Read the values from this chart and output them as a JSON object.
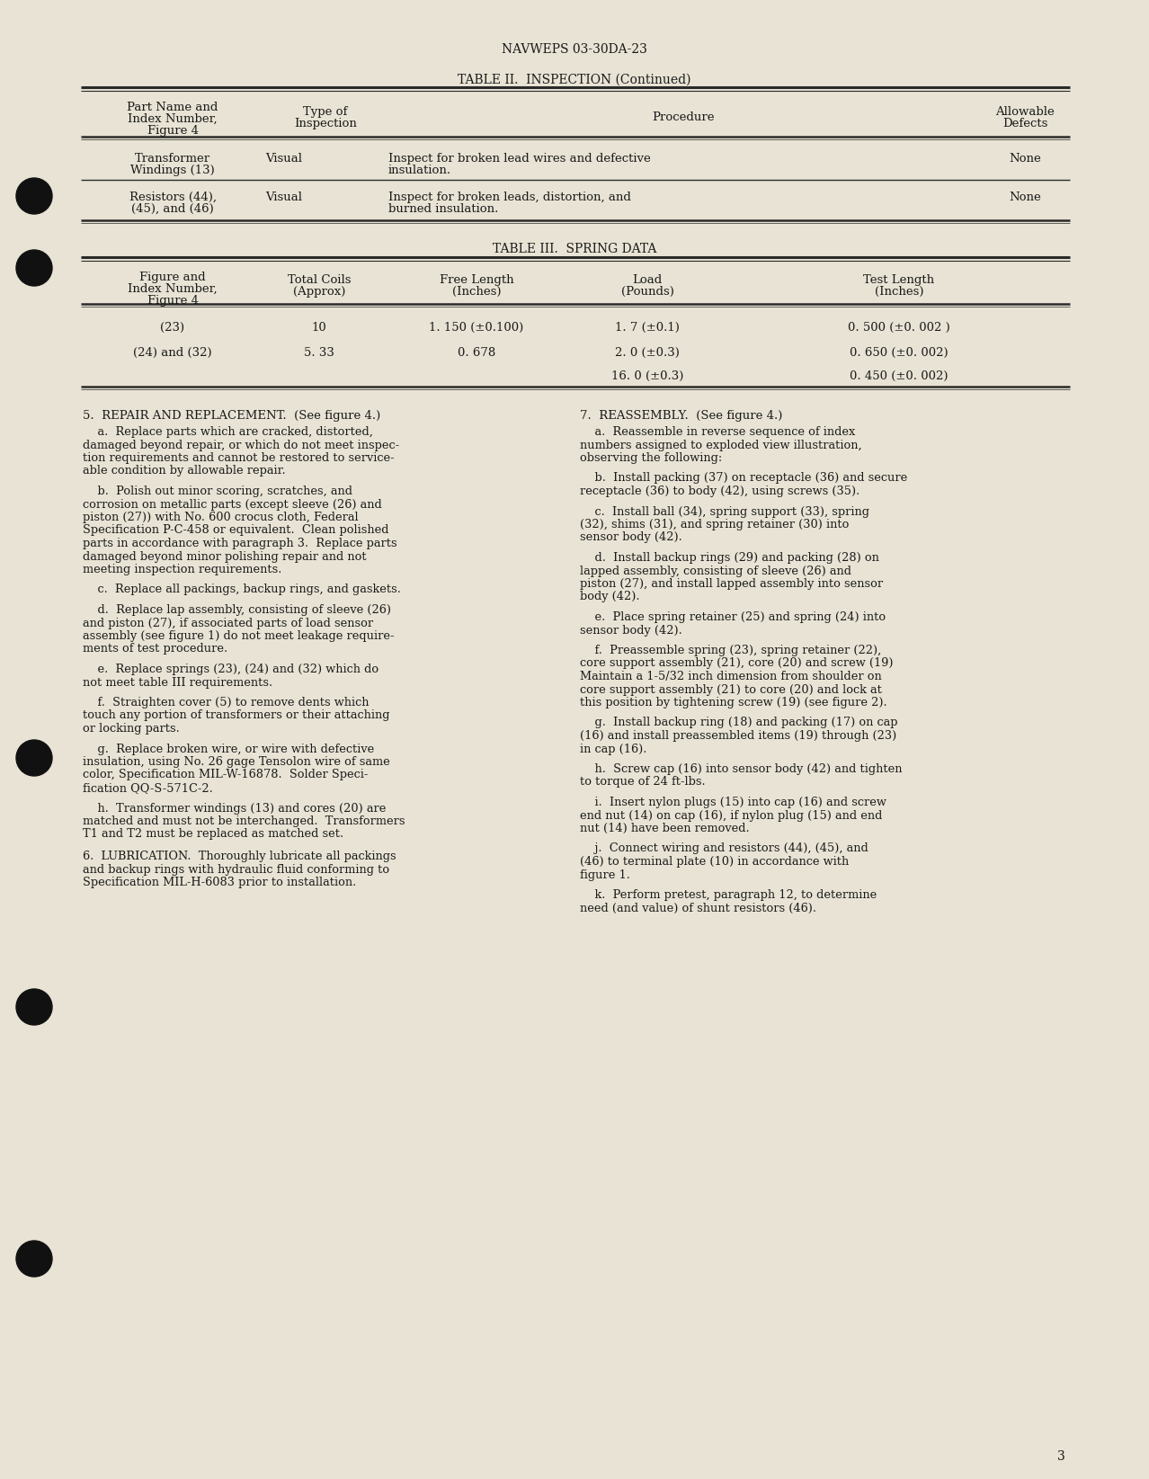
{
  "bg_color": "#e8e3d4",
  "text_color": "#1a1a1a",
  "page_header": "NAVWEPS 03-30DA-23",
  "table2_title": "TABLE II.  INSPECTION (Continued)",
  "table3_title": "TABLE III.  SPRING DATA",
  "section5_title": "5.  REPAIR AND REPLACEMENT.  (See figure 4.)",
  "section5_paragraphs": [
    "    a.  Replace parts which are cracked, distorted,\ndamaged beyond repair, or which do not meet inspec-\ntion requirements and cannot be restored to service-\nable condition by allowable repair.",
    "    b.  Polish out minor scoring, scratches, and\ncorrosion on metallic parts (except sleeve (26) and\npiston (27)) with No. 600 crocus cloth, Federal\nSpecification P-C-458 or equivalent.  Clean polished\nparts in accordance with paragraph 3.  Replace parts\ndamaged beyond minor polishing repair and not\nmeeting inspection requirements.",
    "    c.  Replace all packings, backup rings, and gaskets.",
    "    d.  Replace lap assembly, consisting of sleeve (26)\nand piston (27), if associated parts of load sensor\nassembly (see figure 1) do not meet leakage require-\nments of test procedure.",
    "    e.  Replace springs (23), (24) and (32) which do\nnot meet table III requirements.",
    "    f.  Straighten cover (5) to remove dents which\ntouch any portion of transformers or their attaching\nor locking parts.",
    "    g.  Replace broken wire, or wire with defective\ninsulation, using No. 26 gage Tensolon wire of same\ncolor, Specification MIL-W-16878.  Solder Speci-\nfication QQ-S-571C-2.",
    "    h.  Transformer windings (13) and cores (20) are\nmatched and must not be interchanged.  Transformers\nT1 and T2 must be replaced as matched set."
  ],
  "section6_title": "6.  LUBRICATION.  Thoroughly lubricate all packings\nand backup rings with hydraulic fluid conforming to\nSpecification MIL-H-6083 prior to installation.",
  "section7_title": "7.  REASSEMBLY.  (See figure 4.)",
  "section7_paragraphs": [
    "    a.  Reassemble in reverse sequence of index\nnumbers assigned to exploded view illustration,\nobserving the following:",
    "    b.  Install packing (37) on receptacle (36) and secure\nreceptacle (36) to body (42), using screws (35).",
    "    c.  Install ball (34), spring support (33), spring\n(32), shims (31), and spring retainer (30) into\nsensor body (42).",
    "    d.  Install backup rings (29) and packing (28) on\nlapped assembly, consisting of sleeve (26) and\npiston (27), and install lapped assembly into sensor\nbody (42).",
    "    e.  Place spring retainer (25) and spring (24) into\nsensor body (42).",
    "    f.  Preassemble spring (23), spring retainer (22),\ncore support assembly (21), core (20) and screw (19)\nMaintain a 1-5/32 inch dimension from shoulder on\ncore support assembly (21) to core (20) and lock at\nthis position by tightening screw (19) (see figure 2).",
    "    g.  Install backup ring (18) and packing (17) on cap\n(16) and install preassembled items (19) through (23)\nin cap (16).",
    "    h.  Screw cap (16) into sensor body (42) and tighten\nto torque of 24 ft-lbs.",
    "    i.  Insert nylon plugs (15) into cap (16) and screw\nend nut (14) on cap (16), if nylon plug (15) and end\nnut (14) have been removed.",
    "    j.  Connect wiring and resistors (44), (45), and\n(46) to terminal plate (10) in accordance with\nfigure 1.",
    "    k.  Perform pretest, paragraph 12, to determine\nneed (and value) of shunt resistors (46)."
  ],
  "page_number": "3",
  "dot_y_positions": [
    218,
    298,
    843,
    1120,
    1400
  ],
  "font_family": "serif"
}
